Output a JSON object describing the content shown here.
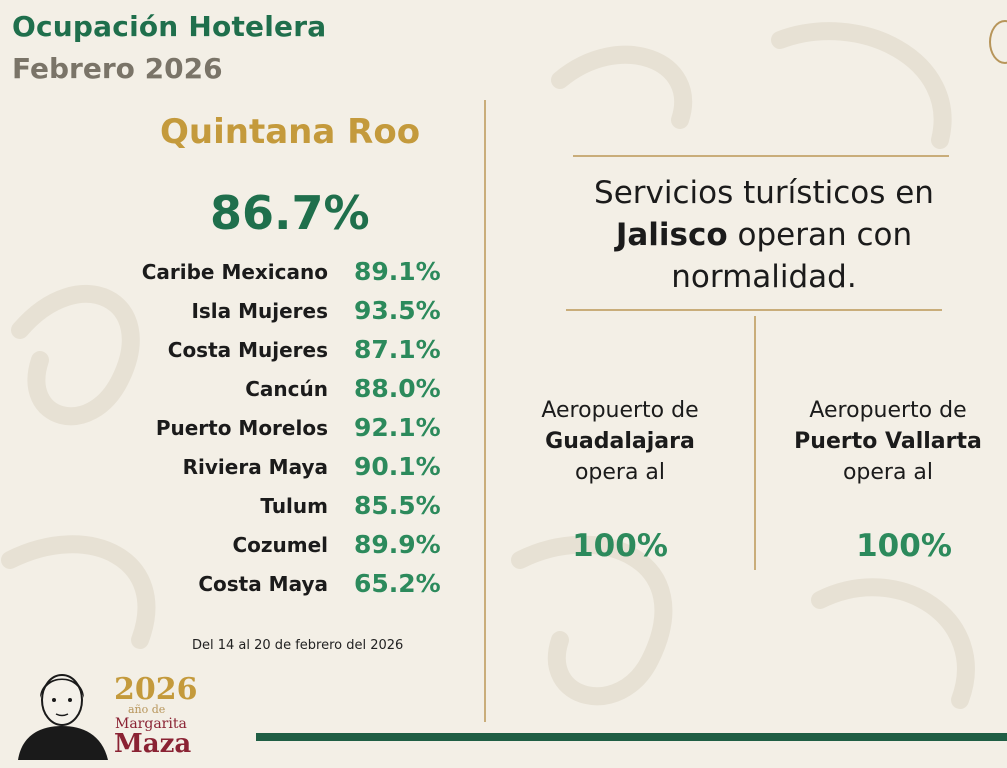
{
  "header": {
    "title": "Ocupación Hotelera",
    "subtitle": "Febrero 2026"
  },
  "quintana_roo": {
    "region": "Quintana Roo",
    "total": "86.7%",
    "destinations": [
      {
        "name": "Caribe Mexicano",
        "value": "89.1%"
      },
      {
        "name": "Isla Mujeres",
        "value": "93.5%"
      },
      {
        "name": "Costa Mujeres",
        "value": "87.1%"
      },
      {
        "name": "Cancún",
        "value": "88.0%"
      },
      {
        "name": "Puerto Morelos",
        "value": "92.1%"
      },
      {
        "name": "Riviera Maya",
        "value": "90.1%"
      },
      {
        "name": "Tulum",
        "value": "85.5%"
      },
      {
        "name": "Cozumel",
        "value": "89.9%"
      },
      {
        "name": "Costa Maya",
        "value": "65.2%"
      }
    ],
    "date_note": "Del 14 al 20 de febrero del 2026"
  },
  "jalisco": {
    "msg_part1": "Servicios turísticos en",
    "msg_bold": "Jalisco",
    "msg_part2": " operan con",
    "msg_part3": "normalidad.",
    "airports": [
      {
        "prefix": "Aeropuerto de",
        "name": "Guadalajara",
        "suffix": "opera al",
        "value": "100%"
      },
      {
        "prefix": "Aeropuerto de",
        "name": "Puerto Vallarta",
        "suffix": "opera al",
        "value": "100%"
      }
    ]
  },
  "logo": {
    "year": "2026",
    "line1": "año de",
    "line2": "Margarita",
    "line3": "Maza"
  },
  "colors": {
    "green": "#1f6f4c",
    "green_value": "#2c8a5c",
    "gold": "#c49a3c",
    "gray": "#7a7468",
    "maroon": "#8a2233",
    "background": "#f3efe6"
  }
}
